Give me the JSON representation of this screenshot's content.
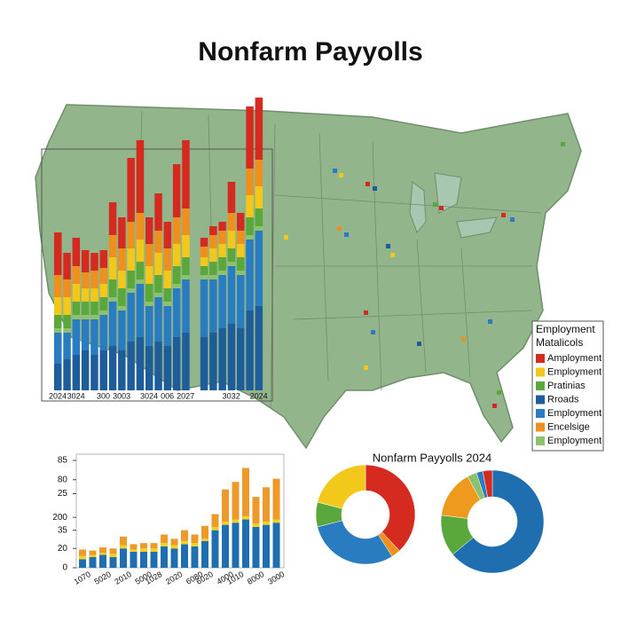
{
  "chart_data": [
    {
      "type": "bar",
      "stacked": true,
      "title": "Nonfarm Payyolls",
      "legend_title": [
        "Employment",
        "Matalicols"
      ],
      "categories": [
        "2024",
        null,
        "3024",
        null,
        null,
        "300",
        null,
        "3003",
        null,
        null,
        "3024",
        null,
        "006",
        null,
        "2027",
        null,
        null,
        null,
        null,
        "3032",
        null,
        null,
        "2024"
      ],
      "series": [
        {
          "name": "Amployment",
          "color": "#d42a20",
          "values": [
            48,
            30,
            32,
            25,
            20,
            20,
            37,
            35,
            72,
            82,
            30,
            42,
            30,
            60,
            77,
            null,
            10,
            10,
            10,
            35,
            20,
            70,
            70
          ]
        },
        {
          "name": "Employment",
          "color": "#f2c81a",
          "values": [
            20,
            20,
            20,
            15,
            15,
            15,
            25,
            20,
            25,
            25,
            20,
            25,
            20,
            25,
            25,
            null,
            10,
            15,
            15,
            20,
            15,
            25,
            25
          ]
        },
        {
          "name": "Pratinias",
          "color": "#5aa83c",
          "values": [
            15,
            15,
            15,
            15,
            15,
            15,
            20,
            20,
            20,
            20,
            20,
            20,
            15,
            20,
            20,
            null,
            10,
            15,
            15,
            15,
            15,
            20,
            20
          ]
        },
        {
          "name": "Rroads",
          "color": "#1f5d9a",
          "values": [
            30,
            35,
            40,
            45,
            40,
            45,
            50,
            45,
            55,
            60,
            50,
            55,
            50,
            60,
            65,
            null,
            60,
            65,
            70,
            75,
            70,
            90,
            95
          ]
        },
        {
          "name": "Employment",
          "color": "#2a7cc0",
          "values": [
            35,
            30,
            40,
            35,
            40,
            40,
            50,
            45,
            55,
            60,
            45,
            50,
            45,
            55,
            60,
            null,
            65,
            60,
            60,
            65,
            60,
            80,
            85
          ]
        },
        {
          "name": "Encelsige",
          "color": "#ee8f1e",
          "values": [
            25,
            20,
            20,
            18,
            20,
            18,
            25,
            25,
            30,
            30,
            25,
            25,
            25,
            30,
            30,
            null,
            12,
            15,
            15,
            20,
            15,
            30,
            30
          ]
        },
        {
          "name": "Employment",
          "color": "#8cc26e",
          "values": [
            5,
            5,
            5,
            5,
            5,
            5,
            5,
            5,
            5,
            5,
            5,
            5,
            5,
            5,
            5,
            null,
            5,
            5,
            5,
            5,
            5,
            5,
            5
          ]
        }
      ]
    },
    {
      "type": "bar",
      "stacked": true,
      "categories": [
        "1070",
        null,
        "5020",
        null,
        "2010",
        null,
        "5000",
        "1028",
        null,
        "2020",
        null,
        "6080",
        "6020",
        null,
        "4000",
        "1010",
        null,
        "8000",
        null,
        "3000"
      ],
      "ylim": [
        0,
        100
      ],
      "yticks": [
        {
          "value": 100,
          "label": "85"
        },
        {
          "value": 82,
          "label": "80"
        },
        {
          "value": 69,
          "label": "25"
        },
        {
          "value": 47,
          "label": "200"
        },
        35,
        {
          "value": 18,
          "label": "20"
        },
        0
      ],
      "series": [
        {
          "color": "#1f6fb0",
          "values": [
            8,
            10,
            12,
            10,
            18,
            15,
            15,
            15,
            20,
            18,
            22,
            20,
            25,
            35,
            40,
            42,
            45,
            38,
            40,
            42
          ]
        },
        {
          "color": "#f2d21a",
          "values": [
            3,
            2,
            2,
            3,
            3,
            2,
            3,
            3,
            3,
            3,
            3,
            3,
            2,
            3,
            3,
            3,
            3,
            3,
            3,
            3
          ]
        },
        {
          "color": "#ee9a2a",
          "values": [
            6,
            4,
            5,
            5,
            8,
            5,
            5,
            5,
            8,
            6,
            10,
            8,
            12,
            12,
            30,
            35,
            45,
            25,
            32,
            38
          ]
        }
      ]
    },
    {
      "type": "pie",
      "title": "Nonfarm Payyolls 2024",
      "values": [
        38,
        3,
        30,
        8,
        21
      ],
      "colors": [
        "#d42a20",
        "#ee8f1e",
        "#2a7cc0",
        "#5aa83c",
        "#f2c81a"
      ]
    },
    {
      "type": "pie",
      "values": [
        64,
        13,
        15,
        3,
        2,
        3
      ],
      "colors": [
        "#1f6fb0",
        "#5aa83c",
        "#ee9a1e",
        "#8cc26e",
        "#2a7cc0",
        "#d42a20"
      ]
    }
  ]
}
